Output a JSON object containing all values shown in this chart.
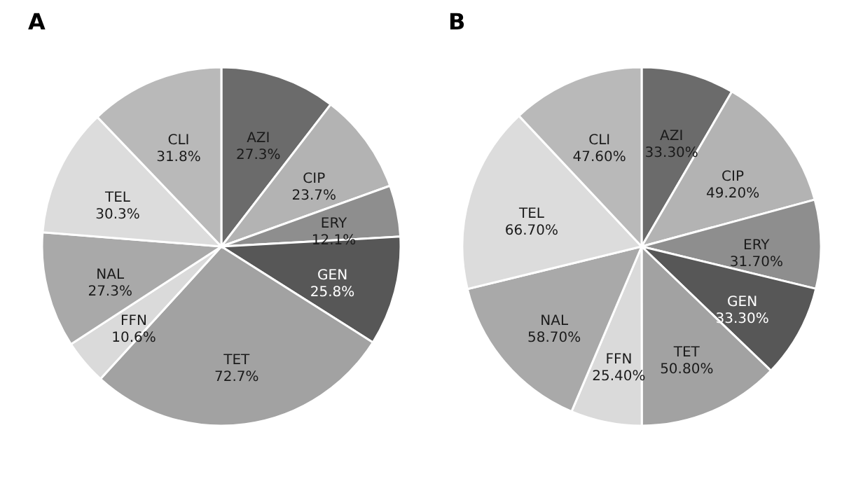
{
  "chart_data": [
    {
      "type": "pie",
      "title": "A",
      "categories": [
        "AZI",
        "CIP",
        "ERY",
        "GEN",
        "TET",
        "FFN",
        "NAL",
        "TEL",
        "CLI"
      ],
      "values": [
        27.3,
        23.7,
        12.1,
        25.8,
        72.7,
        10.6,
        27.3,
        30.3,
        31.8
      ],
      "value_labels": [
        "27.3%",
        "23.7%",
        "12.1%",
        "25.8%",
        "72.7%",
        "10.6%",
        "27.3%",
        "30.3%",
        "31.8%"
      ],
      "colors": [
        "#6b6b6b",
        "#b3b3b3",
        "#8e8e8e",
        "#575757",
        "#a2a2a2",
        "#dadada",
        "#a9a9a9",
        "#dcdcdc",
        "#b9b9b9"
      ],
      "legend": false
    },
    {
      "type": "pie",
      "title": "B",
      "categories": [
        "AZI",
        "CIP",
        "ERY",
        "GEN",
        "TET",
        "FFN",
        "NAL",
        "TEL",
        "CLI"
      ],
      "values": [
        33.3,
        49.2,
        31.7,
        33.3,
        50.8,
        25.4,
        58.7,
        66.7,
        47.6
      ],
      "value_labels": [
        "33.30%",
        "49.20%",
        "31.70%",
        "33.30%",
        "50.80%",
        "25.40%",
        "58.70%",
        "66.70%",
        "47.60%"
      ],
      "colors": [
        "#6b6b6b",
        "#b3b3b3",
        "#8e8e8e",
        "#575757",
        "#a2a2a2",
        "#dadada",
        "#a9a9a9",
        "#dcdcdc",
        "#b9b9b9"
      ],
      "legend": false
    }
  ]
}
